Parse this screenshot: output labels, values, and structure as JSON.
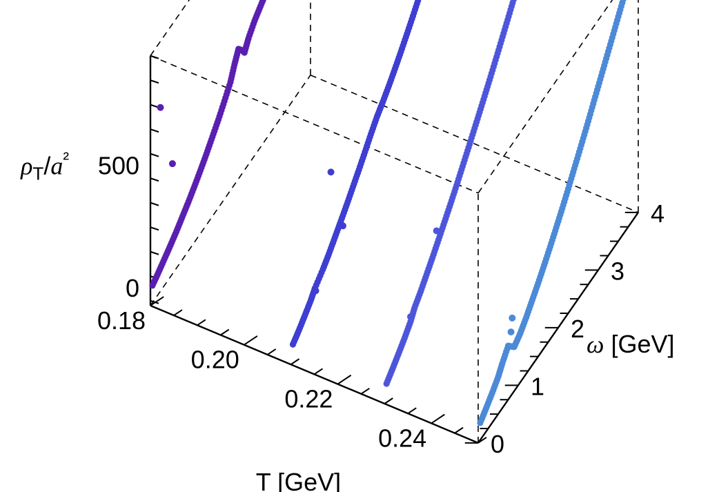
{
  "chart_data": {
    "type": "scatter",
    "projection": "3d",
    "title": "",
    "xlabel": "T [GeV]",
    "ylabel": "ω [GeV]",
    "zlabel": "ρT/a²",
    "xlim": [
      0.18,
      0.25
    ],
    "ylim": [
      0,
      4
    ],
    "zlim": [
      -70,
      950
    ],
    "x_ticks": [
      "0.18",
      "0.20",
      "0.22",
      "0.24"
    ],
    "x_tick_values": [
      0.18,
      0.2,
      0.22,
      0.24
    ],
    "y_ticks": [
      "0",
      "1",
      "2",
      "3",
      "4"
    ],
    "y_tick_values": [
      0,
      1,
      2,
      3,
      4
    ],
    "z_ticks": [
      "0",
      "500"
    ],
    "z_tick_values": [
      0,
      500
    ],
    "grid": false,
    "box": "dashed",
    "legend": "none",
    "series": [
      {
        "T": 0.18,
        "color": "#5a1fb0",
        "points": [
          [
            0.05,
            0
          ],
          [
            0.2,
            18
          ],
          [
            0.35,
            38
          ],
          [
            0.5,
            58
          ],
          [
            0.65,
            80
          ],
          [
            0.8,
            105
          ],
          [
            0.95,
            130
          ],
          [
            1.1,
            158
          ],
          [
            1.25,
            188
          ],
          [
            1.4,
            220
          ],
          [
            1.55,
            255
          ],
          [
            1.7,
            290
          ],
          [
            1.85,
            330
          ],
          [
            2.0,
            372
          ],
          [
            2.1,
            420
          ],
          [
            2.2,
            460
          ],
          [
            2.3,
            430
          ],
          [
            2.35,
            410
          ],
          [
            2.45,
            445
          ],
          [
            2.6,
            480
          ],
          [
            2.75,
            505
          ],
          [
            2.9,
            530
          ],
          [
            3.05,
            560
          ],
          [
            3.2,
            595
          ],
          [
            3.35,
            632
          ],
          [
            3.5,
            670
          ],
          [
            3.65,
            710
          ],
          [
            3.8,
            752
          ],
          [
            3.95,
            800
          ]
        ],
        "outliers": [
          [
            0.25,
            680
          ],
          [
            0.55,
            380
          ]
        ]
      },
      {
        "T": 0.21,
        "color": "#3f3ed2",
        "points": [
          [
            0.05,
            0
          ],
          [
            0.2,
            22
          ],
          [
            0.35,
            48
          ],
          [
            0.5,
            75
          ],
          [
            0.6,
            100
          ],
          [
            0.8,
            130
          ],
          [
            0.95,
            158
          ],
          [
            1.1,
            190
          ],
          [
            1.25,
            222
          ],
          [
            1.4,
            255
          ],
          [
            1.55,
            290
          ],
          [
            1.7,
            325
          ],
          [
            1.85,
            362
          ],
          [
            2.0,
            400
          ],
          [
            2.15,
            435
          ],
          [
            2.3,
            462
          ],
          [
            2.45,
            492
          ],
          [
            2.6,
            525
          ],
          [
            2.75,
            560
          ],
          [
            2.9,
            597
          ],
          [
            3.05,
            635
          ],
          [
            3.2,
            675
          ],
          [
            3.35,
            715
          ],
          [
            3.5,
            758
          ],
          [
            3.65,
            802
          ],
          [
            3.8,
            848
          ],
          [
            3.95,
            895
          ]
        ],
        "outliers": [
          [
            0.62,
            85
          ],
          [
            1.0,
            480
          ],
          [
            1.3,
            190
          ]
        ]
      },
      {
        "T": 0.23,
        "color": "#4d56db",
        "points": [
          [
            0.05,
            0
          ],
          [
            0.2,
            25
          ],
          [
            0.35,
            52
          ],
          [
            0.5,
            80
          ],
          [
            0.65,
            112
          ],
          [
            0.75,
            145
          ],
          [
            0.9,
            175
          ],
          [
            1.05,
            210
          ],
          [
            1.2,
            245
          ],
          [
            1.35,
            282
          ],
          [
            1.5,
            320
          ],
          [
            1.65,
            358
          ],
          [
            1.8,
            398
          ],
          [
            1.95,
            440
          ],
          [
            2.1,
            482
          ],
          [
            2.25,
            525
          ],
          [
            2.4,
            568
          ],
          [
            2.55,
            612
          ],
          [
            2.7,
            657
          ],
          [
            2.85,
            703
          ],
          [
            3.0,
            750
          ],
          [
            3.15,
            797
          ],
          [
            3.3,
            845
          ],
          [
            3.45,
            893
          ],
          [
            3.6,
            942
          ]
        ],
        "outliers": [
          [
            0.65,
            132
          ],
          [
            1.3,
            330
          ]
        ]
      },
      {
        "T": 0.25,
        "color": "#4c8ad8",
        "points": [
          [
            0.05,
            0
          ],
          [
            0.2,
            25
          ],
          [
            0.35,
            52
          ],
          [
            0.5,
            82
          ],
          [
            0.6,
            112
          ],
          [
            0.75,
            150
          ],
          [
            0.9,
            110
          ],
          [
            1.05,
            130
          ],
          [
            1.2,
            160
          ],
          [
            1.35,
            195
          ],
          [
            1.5,
            230
          ],
          [
            1.65,
            268
          ],
          [
            1.8,
            308
          ],
          [
            1.95,
            350
          ],
          [
            2.1,
            393
          ],
          [
            2.25,
            438
          ],
          [
            2.4,
            485
          ],
          [
            2.55,
            532
          ],
          [
            2.7,
            580
          ],
          [
            2.85,
            630
          ],
          [
            3.0,
            680
          ],
          [
            3.15,
            730
          ],
          [
            3.3,
            780
          ],
          [
            3.45,
            830
          ],
          [
            3.6,
            880
          ],
          [
            3.75,
            930
          ],
          [
            3.95,
            985
          ]
        ],
        "outliers": [
          [
            0.85,
            240
          ],
          [
            0.82,
            190
          ]
        ]
      }
    ]
  }
}
